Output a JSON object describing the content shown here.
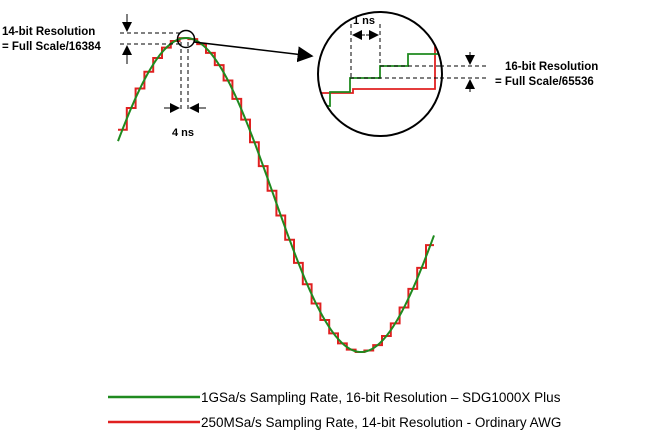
{
  "labels": {
    "res14_line1": "14-bit Resolution",
    "res14_line2": "= Full Scale/16384",
    "step_4ns": "4 ns",
    "step_1ns": "1 ns",
    "res16_line1": "16-bit Resolution",
    "res16_line2": "= Full Scale/65536"
  },
  "legend": {
    "green_text": "1GSa/s  Sampling Rate, 16-bit Resolution  –  SDG1000X Plus",
    "red_text": "250MSa/s Sampling Rate, 14-bit Resolution - Ordinary AWG"
  },
  "colors": {
    "green": "#1f8a1f",
    "red": "#e02020",
    "dash": "#000000"
  }
}
